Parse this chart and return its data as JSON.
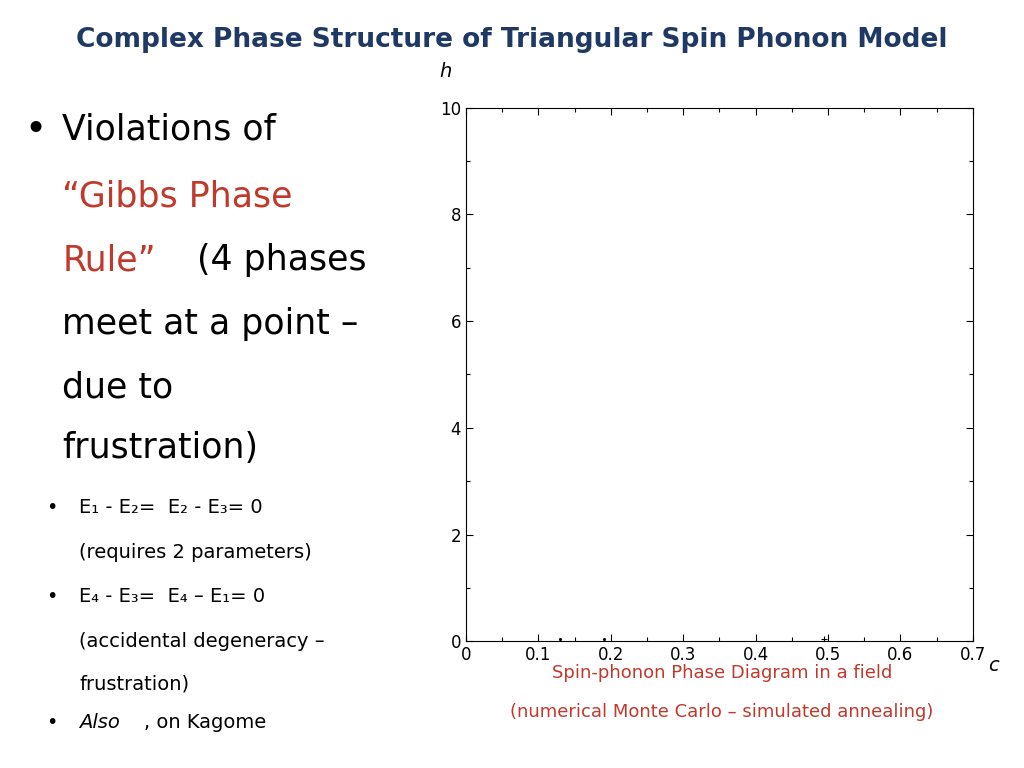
{
  "title": "Complex Phase Structure of Triangular Spin Phonon Model",
  "title_color": "#1F3864",
  "title_fontsize": 19,
  "plot_xlabel": "c",
  "plot_ylabel": "h",
  "plot_xlim": [
    0,
    0.7
  ],
  "plot_ylim": [
    0,
    10
  ],
  "plot_xticks": [
    0,
    0.1,
    0.2,
    0.3,
    0.4,
    0.5,
    0.6,
    0.7
  ],
  "plot_yticks": [
    0,
    2,
    4,
    6,
    8,
    10
  ],
  "caption_line1": "Spin-phonon Phase Diagram in a field",
  "caption_line2": "(numerical Monte Carlo – simulated annealing)",
  "caption_color": "#C0392B",
  "caption_fontsize": 13,
  "bullet1_fontsize": 25,
  "sub_bullet_fontsize": 14,
  "background_color": "#ffffff",
  "red_color": "#C0392B",
  "title_blue": "#1F3864"
}
